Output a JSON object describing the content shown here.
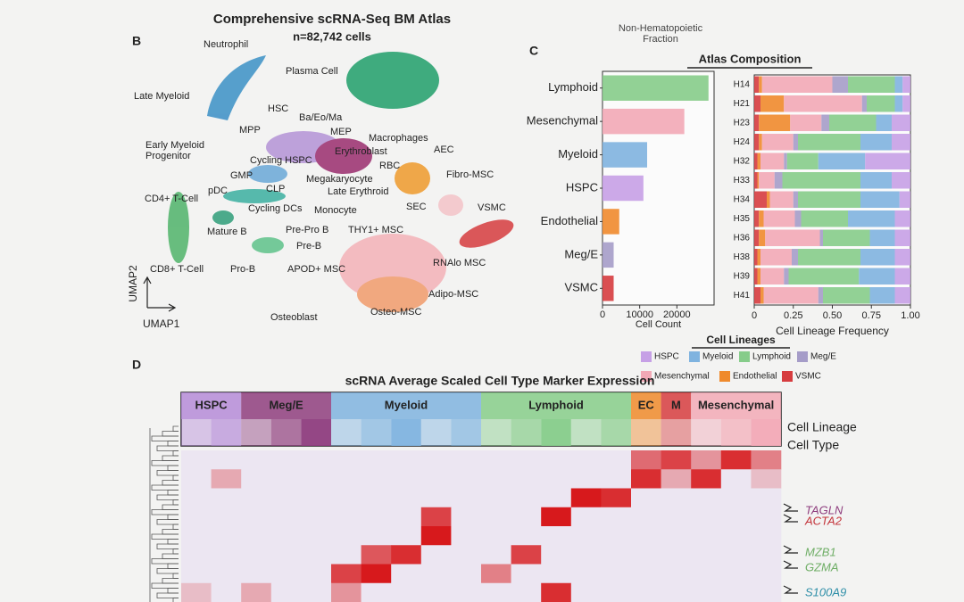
{
  "header": {
    "caption": "Non-Hematopoietic\nFraction"
  },
  "panel_b": {
    "label": "B",
    "title": "Comprehensive scRNA-Seq BM Atlas",
    "subtitle": "n=82,742 cells",
    "x_axis_label": "UMAP1",
    "y_axis_label": "UMAP2",
    "clusters": [
      "Neutrophil",
      "Plasma Cell",
      "Late Myeloid",
      "HSC",
      "Ba/Eo/Ma",
      "MPP",
      "MEP",
      "Macrophages",
      "Erythroblast",
      "Early Myeloid\nProgenitor",
      "Cycling HSPC",
      "RBC",
      "AEC",
      "GMP",
      "Megakaryocyte",
      "Fibro-MSC",
      "pDC",
      "CLP",
      "Late Erythroid",
      "CD4+ T-Cell",
      "Cycling DCs",
      "Monocyte",
      "SEC",
      "VSMC",
      "Mature B",
      "Pre-Pro B",
      "THY1+ MSC",
      "Pre-B",
      "RNAlo MSC",
      "CD8+ T-Cell",
      "Pro-B",
      "APOD+ MSC",
      "Adipo-MSC",
      "Osteoblast",
      "Osteo-MSC"
    ]
  },
  "panel_c": {
    "label": "C",
    "title": "Atlas Composition"
  },
  "chart_data": [
    {
      "type": "bar",
      "orientation": "horizontal",
      "categories": [
        "Lymphoid",
        "Mesenchymal",
        "Myeloid",
        "HSPC",
        "Endothelial",
        "Meg/E",
        "VSMC"
      ],
      "values": [
        28500,
        22000,
        12000,
        11000,
        4500,
        3000,
        3000
      ],
      "colors": [
        "#86cc8a",
        "#f2a9b6",
        "#7fb3df",
        "#c6a0e6",
        "#ef8a2c",
        "#a59cc8",
        "#d63c3f"
      ],
      "xlim": [
        0,
        30000
      ],
      "xticks": [
        0,
        10000,
        20000
      ],
      "x_label": "Cell Count"
    },
    {
      "type": "stacked_bar",
      "orientation": "horizontal",
      "categories": [
        "H14",
        "H21",
        "H23",
        "H24",
        "H32",
        "H33",
        "H34",
        "H35",
        "H36",
        "H38",
        "H39",
        "H41"
      ],
      "series": [
        {
          "name": "HSPC",
          "color": "#c6a0e6",
          "values": [
            0.05,
            0.05,
            0.12,
            0.12,
            0.29,
            0.12,
            0.07,
            0.1,
            0.1,
            0.1,
            0.1,
            0.1
          ]
        },
        {
          "name": "Myeloid",
          "color": "#7fb3df",
          "values": [
            0.05,
            0.05,
            0.1,
            0.2,
            0.3,
            0.2,
            0.25,
            0.3,
            0.16,
            0.22,
            0.23,
            0.16
          ]
        },
        {
          "name": "Lymphoid",
          "color": "#86cc8a",
          "values": [
            0.3,
            0.18,
            0.3,
            0.4,
            0.2,
            0.5,
            0.4,
            0.3,
            0.3,
            0.4,
            0.45,
            0.3
          ]
        },
        {
          "name": "Meg/E",
          "color": "#a59cc8",
          "values": [
            0.1,
            0.03,
            0.05,
            0.03,
            0.02,
            0.05,
            0.03,
            0.04,
            0.02,
            0.04,
            0.03,
            0.03
          ]
        },
        {
          "name": "Mesenchymal",
          "color": "#f2a9b6",
          "values": [
            0.45,
            0.5,
            0.2,
            0.2,
            0.15,
            0.1,
            0.15,
            0.2,
            0.35,
            0.2,
            0.15,
            0.35
          ]
        },
        {
          "name": "Endothelial",
          "color": "#ef8a2c",
          "values": [
            0.02,
            0.15,
            0.2,
            0.02,
            0.02,
            0.01,
            0.02,
            0.03,
            0.04,
            0.02,
            0.02,
            0.02
          ]
        },
        {
          "name": "VSMC",
          "color": "#d63c3f",
          "values": [
            0.03,
            0.04,
            0.03,
            0.03,
            0.02,
            0.02,
            0.08,
            0.03,
            0.03,
            0.02,
            0.02,
            0.04
          ]
        }
      ],
      "xlim": [
        0,
        1
      ],
      "xticks": [
        0,
        0.25,
        {
          "value": 0.5,
          "label": "0.50"
        },
        0.75,
        {
          "value": 1,
          "label": "1.00"
        }
      ],
      "x_label": "Cell Lineage Frequency",
      "legend_title": "Cell Lineages"
    },
    {
      "type": "heatmap",
      "colorscale": [
        "#ece6f2",
        "#d7191c"
      ],
      "values": [
        [
          0,
          0,
          0,
          0,
          0,
          0,
          0,
          0,
          0,
          0,
          0,
          0,
          0,
          0,
          0,
          0.6,
          0.8,
          0.4,
          0.9,
          0.5
        ],
        [
          0,
          0.3,
          0,
          0,
          0,
          0,
          0,
          0,
          0,
          0,
          0,
          0,
          0,
          0,
          0,
          0.9,
          0.3,
          0.9,
          0,
          0.2
        ],
        [
          0,
          0,
          0,
          0,
          0,
          0,
          0,
          0,
          0,
          0,
          0,
          0,
          0,
          1,
          0.9,
          0,
          0,
          0,
          0,
          0
        ],
        [
          0,
          0,
          0,
          0,
          0,
          0,
          0,
          0,
          0.8,
          0,
          0,
          0,
          1,
          0,
          0,
          0,
          0,
          0,
          0,
          0
        ],
        [
          0,
          0,
          0,
          0,
          0,
          0,
          0,
          0,
          1,
          0,
          0,
          0,
          0,
          0,
          0,
          0,
          0,
          0,
          0,
          0
        ],
        [
          0,
          0,
          0,
          0,
          0,
          0,
          0.7,
          0.9,
          0,
          0,
          0,
          0.8,
          0,
          0,
          0,
          0,
          0,
          0,
          0,
          0
        ],
        [
          0,
          0,
          0,
          0,
          0,
          0.8,
          1,
          0,
          0,
          0,
          0.5,
          0,
          0,
          0,
          0,
          0,
          0,
          0,
          0,
          0
        ],
        [
          0.2,
          0,
          0.3,
          0,
          0,
          0.4,
          0,
          0,
          0,
          0,
          0,
          0,
          0.9,
          0,
          0,
          0,
          0,
          0,
          0,
          0
        ]
      ]
    }
  ],
  "panel_d": {
    "label": "D",
    "title": "scRNA Average Scaled Cell Type Marker Expression",
    "lineages": [
      {
        "name": "HSPC",
        "color": "#b58bd8"
      },
      {
        "name": "Meg/E",
        "color": "#8e3d7e"
      },
      {
        "name": "Myeloid",
        "color": "#7fb3df"
      },
      {
        "name": "Lymphoid",
        "color": "#86cc8a"
      },
      {
        "name": "EC",
        "color": "#ef8a2c"
      },
      {
        "name": "M",
        "color": "#d63c3f"
      },
      {
        "name": "Mesenchymal",
        "color": "#f2a9b6"
      }
    ],
    "row_labels": [
      "Cell Lineage",
      "Cell Type"
    ],
    "genes": [
      {
        "name": "TAGLN",
        "color": "#8e3d7e"
      },
      {
        "name": "ACTA2",
        "color": "#c3343b"
      },
      {
        "name": "MZB1",
        "color": "#6fae66"
      },
      {
        "name": "GZMA",
        "color": "#6fae66"
      },
      {
        "name": "S100A9",
        "color": "#2f8fa8"
      }
    ]
  }
}
